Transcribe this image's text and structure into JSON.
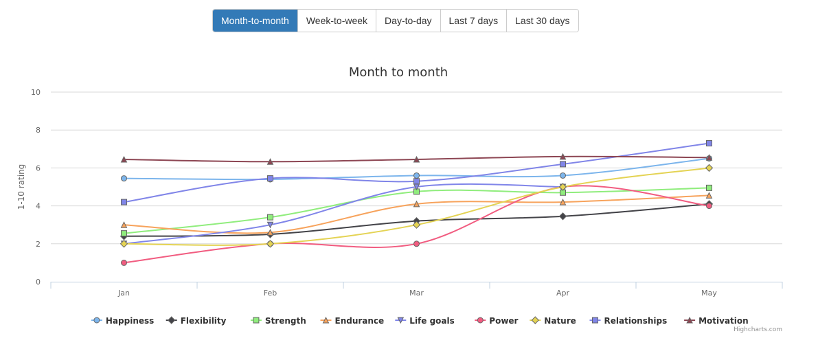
{
  "range_buttons": [
    {
      "label": "Month-to-month",
      "active": true
    },
    {
      "label": "Week-to-week",
      "active": false
    },
    {
      "label": "Day-to-day",
      "active": false
    },
    {
      "label": "Last 7 days",
      "active": false
    },
    {
      "label": "Last 30 days",
      "active": false
    }
  ],
  "credits": "Highcharts.com",
  "chart_data": {
    "type": "line",
    "title": "Month to month",
    "xlabel": "",
    "ylabel": "1-10 rating",
    "ylim": [
      0,
      10
    ],
    "yticks": [
      0,
      2,
      4,
      6,
      8,
      10
    ],
    "grid": true,
    "legend": "bottom-center",
    "categories": [
      "Jan",
      "Feb",
      "Mar",
      "Apr",
      "May"
    ],
    "series": [
      {
        "name": "Happiness",
        "color": "#7cb5ec",
        "marker": "circle",
        "values": [
          5.45,
          5.4,
          5.6,
          5.6,
          6.5
        ]
      },
      {
        "name": "Flexibility",
        "color": "#434348",
        "marker": "diamond",
        "values": [
          2.4,
          2.5,
          3.2,
          3.45,
          4.1
        ]
      },
      {
        "name": "Strength",
        "color": "#90ed7d",
        "marker": "square",
        "values": [
          2.55,
          3.4,
          4.75,
          4.7,
          4.95
        ]
      },
      {
        "name": "Endurance",
        "color": "#f7a35c",
        "marker": "triangle",
        "values": [
          3.0,
          2.6,
          4.1,
          4.2,
          4.55
        ]
      },
      {
        "name": "Life goals",
        "color": "#8085e9",
        "marker": "triangle-down",
        "values": [
          2.0,
          3.0,
          5.0,
          5.0,
          null
        ]
      },
      {
        "name": "Power",
        "color": "#f15c80",
        "marker": "circle",
        "values": [
          1.0,
          2.0,
          2.0,
          5.0,
          4.0
        ]
      },
      {
        "name": "Nature",
        "color": "#e4d354",
        "marker": "diamond",
        "values": [
          2.0,
          2.0,
          3.0,
          5.0,
          6.0
        ]
      },
      {
        "name": "Relationships",
        "color": "#8085e8",
        "marker": "square",
        "values": [
          4.2,
          5.45,
          5.3,
          6.2,
          7.3
        ]
      },
      {
        "name": "Motivation",
        "color": "#8d4653",
        "marker": "triangle",
        "values": [
          6.45,
          6.33,
          6.45,
          6.6,
          6.55
        ]
      }
    ]
  }
}
